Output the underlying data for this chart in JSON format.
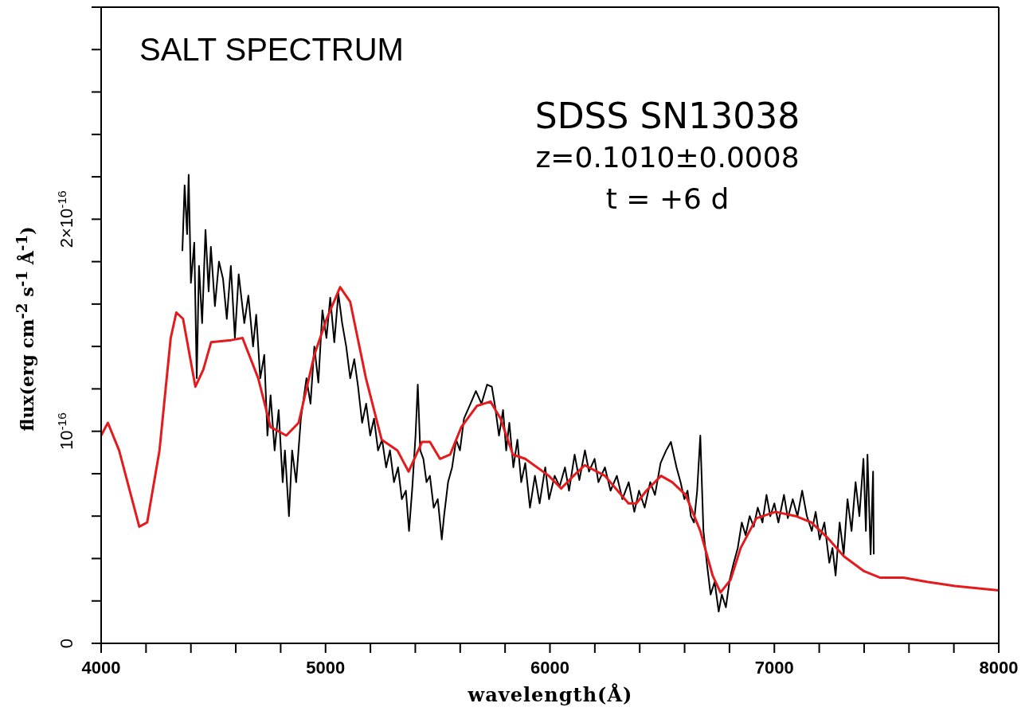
{
  "chart_data": {
    "type": "line",
    "title": "SALT SPECTRUM",
    "annotations": [
      "SDSS SN13038",
      "z=0.1010±0.0008",
      "t = +6 d"
    ],
    "xlabel": "wavelength(Å)",
    "ylabel": "flux(erg cm$^{-2}$ s$^{-1}$ Å$^{-1}$)",
    "xlim": [
      4000,
      8000
    ],
    "xticks": [
      4000,
      {
        "value": 4200,
        "label": null
      },
      {
        "value": 4400,
        "label": null
      },
      {
        "value": 4600,
        "label": null
      },
      {
        "value": 4800,
        "label": null
      },
      5000,
      {
        "value": 5200,
        "label": null
      },
      {
        "value": 5400,
        "label": null
      },
      {
        "value": 5600,
        "label": null
      },
      {
        "value": 5800,
        "label": null
      },
      6000,
      {
        "value": 6200,
        "label": null
      },
      {
        "value": 6400,
        "label": null
      },
      {
        "value": 6600,
        "label": null
      },
      {
        "value": 6800,
        "label": null
      },
      7000,
      {
        "value": 7200,
        "label": null
      },
      {
        "value": 7400,
        "label": null
      },
      {
        "value": 7600,
        "label": null
      },
      {
        "value": 7800,
        "label": null
      },
      8000
    ],
    "ylim": [
      0,
      3e-16
    ],
    "yticks": [
      0,
      {
        "value": 2e-17,
        "label": null
      },
      {
        "value": 4e-17,
        "label": null
      },
      {
        "value": 6e-17,
        "label": null
      },
      {
        "value": 8e-17,
        "label": null
      },
      {
        "value": 1e-16,
        "label": "10$^{-16}$"
      },
      {
        "value": 1.2e-16,
        "label": null
      },
      {
        "value": 1.4e-16,
        "label": null
      },
      {
        "value": 1.6e-16,
        "label": null
      },
      {
        "value": 1.8e-16,
        "label": null
      },
      {
        "value": 2e-16,
        "label": "2×10$^{-16}$"
      },
      {
        "value": 2.2e-16,
        "label": null
      },
      {
        "value": 2.4e-16,
        "label": null
      },
      {
        "value": 2.6e-16,
        "label": null
      },
      {
        "value": 2.8e-16,
        "label": null
      },
      {
        "value": 3e-16,
        "label": null
      }
    ],
    "series": [
      {
        "color": "#000000",
        "x": [
          4362,
          4372,
          4383,
          4390,
          4400,
          4415,
          4426,
          4436,
          4450,
          4465,
          4479,
          4489,
          4507,
          4525,
          4543,
          4560,
          4578,
          4596,
          4613,
          4638,
          4656,
          4677,
          4691,
          4709,
          4727,
          4741,
          4755,
          4773,
          4791,
          4809,
          4819,
          4837,
          4851,
          4869,
          4890,
          4915,
          4933,
          4950,
          4968,
          4986,
          5004,
          5021,
          5039,
          5057,
          5074,
          5092,
          5110,
          5128,
          5145,
          5163,
          5181,
          5199,
          5216,
          5234,
          5252,
          5270,
          5287,
          5305,
          5323,
          5340,
          5358,
          5372,
          5387,
          5401,
          5411,
          5422,
          5436,
          5450,
          5465,
          5482,
          5500,
          5518,
          5528,
          5546,
          5564,
          5582,
          5599,
          5617,
          5642,
          5670,
          5695,
          5720,
          5741,
          5755,
          5773,
          5791,
          5805,
          5819,
          5837,
          5855,
          5872,
          5890,
          5911,
          5933,
          5954,
          5979,
          5996,
          6021,
          6043,
          6067,
          6085,
          6110,
          6131,
          6156,
          6174,
          6199,
          6216,
          6245,
          6270,
          6298,
          6323,
          6351,
          6376,
          6397,
          6422,
          6447,
          6468,
          6493,
          6518,
          6539,
          6564,
          6582,
          6599,
          6613,
          6628,
          6642,
          6656,
          6670,
          6684,
          6699,
          6716,
          6734,
          6752,
          6766,
          6784,
          6801,
          6819,
          6837,
          6855,
          6872,
          6890,
          6908,
          6926,
          6947,
          6965,
          6982,
          7000,
          7018,
          7043,
          7060,
          7082,
          7103,
          7124,
          7145,
          7167,
          7184,
          7202,
          7223,
          7245,
          7259,
          7273,
          7291,
          7309,
          7326,
          7344,
          7362,
          7379,
          7397,
          7408,
          7415,
          7429,
          7440,
          7443
        ],
        "values": [
          1.85e-16,
          2.16e-16,
          1.93e-16,
          2.21e-16,
          1.7e-16,
          1.89e-16,
          1.25e-16,
          1.78e-16,
          1.51e-16,
          1.95e-16,
          1.66e-16,
          1.87e-16,
          1.59e-16,
          1.8e-16,
          1.72e-16,
          1.53e-16,
          1.78e-16,
          1.44e-16,
          1.74e-16,
          1.51e-16,
          1.64e-16,
          1.4e-16,
          1.55e-16,
          1.25e-16,
          1.36e-16,
          9.8e-17,
          1.17e-16,
          9.1e-17,
          1.1e-16,
          7.6e-17,
          9.1e-17,
          6e-17,
          9.1e-17,
          7.6e-17,
          1.06e-16,
          1.25e-16,
          1.13e-16,
          1.4e-16,
          1.23e-16,
          1.57e-16,
          1.44e-16,
          1.63e-16,
          1.42e-16,
          1.65e-16,
          1.51e-16,
          1.4e-16,
          1.25e-16,
          1.34e-16,
          1.21e-16,
          1.04e-16,
          1.13e-16,
          9.8e-17,
          1.06e-16,
          9.1e-17,
          9.6e-17,
          8.3e-17,
          9.1e-17,
          7.6e-17,
          8.3e-17,
          6.8e-17,
          7.2e-17,
          5.3e-17,
          7.4e-17,
          9.8e-17,
          1.22e-16,
          9.1e-17,
          8.7e-17,
          7.6e-17,
          7.9e-17,
          6.4e-17,
          6.8e-17,
          4.9e-17,
          6e-17,
          7.6e-17,
          8.3e-17,
          9.6e-17,
          9.1e-17,
          1.06e-16,
          1.12e-16,
          1.19e-16,
          1.13e-16,
          1.22e-16,
          1.21e-16,
          1.12e-16,
          9.8e-17,
          1.1e-16,
          9.1e-17,
          1.04e-16,
          8.3e-17,
          9.6e-17,
          7.6e-17,
          8.5e-17,
          6.4e-17,
          7.9e-17,
          6.6e-17,
          8.3e-17,
          6.8e-17,
          7.9e-17,
          7.4e-17,
          8.3e-17,
          7.2e-17,
          8.9e-17,
          7.7e-17,
          9.1e-17,
          8.1e-17,
          8.7e-17,
          7.6e-17,
          8.3e-17,
          7.2e-17,
          7.9e-17,
          6.8e-17,
          7.6e-17,
          6.2e-17,
          7.2e-17,
          6.4e-17,
          7.6e-17,
          7e-17,
          8.5e-17,
          9.1e-17,
          9.5e-17,
          8.3e-17,
          7.6e-17,
          6.8e-17,
          7.2e-17,
          6e-17,
          5.7e-17,
          7.2e-17,
          9.8e-17,
          5.3e-17,
          3.8e-17,
          2.3e-17,
          2.9e-17,
          1.5e-17,
          2.3e-17,
          1.7e-17,
          3e-17,
          3.8e-17,
          4.5e-17,
          5.7e-17,
          5.1e-17,
          6e-17,
          5.5e-17,
          6.4e-17,
          5.7e-17,
          7e-17,
          6e-17,
          6.6e-17,
          5.7e-17,
          7e-17,
          5.9e-17,
          6.8e-17,
          6e-17,
          7.2e-17,
          6e-17,
          5.3e-17,
          6.2e-17,
          4.9e-17,
          5.7e-17,
          3.8e-17,
          4.5e-17,
          3.2e-17,
          5.7e-17,
          4.2e-17,
          6.8e-17,
          5.3e-17,
          7.6e-17,
          6e-17,
          8.7e-17,
          5.3e-17,
          8.9e-17,
          4.2e-17,
          8.1e-17,
          4.2e-17
        ]
      },
      {
        "color": "#e41a1c",
        "x": [
          4000,
          4030,
          4080,
          4170,
          4205,
          4260,
          4310,
          4335,
          4365,
          4420,
          4455,
          4490,
          4580,
          4630,
          4700,
          4755,
          4825,
          4880,
          4950,
          5005,
          5065,
          5110,
          5180,
          5250,
          5320,
          5370,
          5430,
          5465,
          5510,
          5555,
          5605,
          5675,
          5735,
          5780,
          5835,
          5890,
          5995,
          6050,
          6105,
          6155,
          6245,
          6350,
          6385,
          6430,
          6495,
          6545,
          6605,
          6670,
          6725,
          6760,
          6805,
          6850,
          6920,
          7005,
          7095,
          7165,
          7235,
          7310,
          7400,
          7470,
          7575,
          7680,
          7805,
          8000
        ],
        "values": [
          9.8e-17,
          1.04e-16,
          9.1e-17,
          5.5e-17,
          5.7e-17,
          9.1e-17,
          1.44e-16,
          1.56e-16,
          1.53e-16,
          1.21e-16,
          1.29e-16,
          1.42e-16,
          1.43e-16,
          1.44e-16,
          1.25e-16,
          1.02e-16,
          9.8e-17,
          1.04e-16,
          1.36e-16,
          1.53e-16,
          1.68e-16,
          1.61e-16,
          1.25e-16,
          9.6e-17,
          9.1e-17,
          8.1e-17,
          9.5e-17,
          9.5e-17,
          8.7e-17,
          8.9e-17,
          1.02e-16,
          1.12e-16,
          1.14e-16,
          1.06e-16,
          8.9e-17,
          8.7e-17,
          7.9e-17,
          7.3e-17,
          7.9e-17,
          8.4e-17,
          7.9e-17,
          6.6e-17,
          6.6e-17,
          7.2e-17,
          7.9e-17,
          7.6e-17,
          7e-17,
          5.3e-17,
          3.2e-17,
          2.4e-17,
          3e-17,
          4.5e-17,
          5.9e-17,
          6.2e-17,
          6e-17,
          5.7e-17,
          5e-17,
          4.1e-17,
          3.4e-17,
          3.1e-17,
          3.1e-17,
          2.9e-17,
          2.7e-17,
          2.5e-17
        ]
      }
    ]
  }
}
